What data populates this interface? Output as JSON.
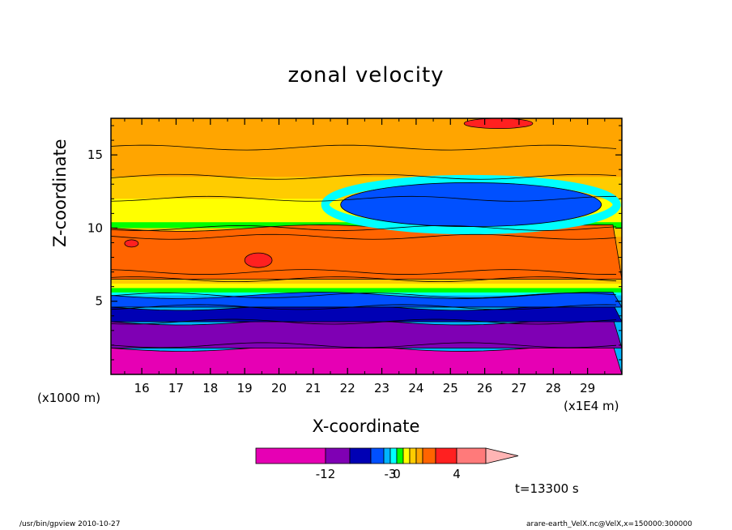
{
  "chart_data": {
    "type": "heatmap",
    "title": "zonal velocity",
    "xlabel": "X-coordinate",
    "ylabel": "Z-coordinate",
    "x_unit_label": "(x1E4 m)",
    "y_unit_label": "(x1000 m)",
    "x_ticks": [
      "16",
      "17",
      "18",
      "19",
      "20",
      "21",
      "22",
      "23",
      "24",
      "25",
      "26",
      "27",
      "28",
      "29"
    ],
    "y_ticks": [
      "5",
      "10",
      "15"
    ],
    "xlim": [
      15.1,
      30.0
    ],
    "ylim": [
      0,
      17.5
    ],
    "time_label": "t=13300 s",
    "colorbar": {
      "colors": [
        "#e600b4",
        "#7f00b4",
        "#0000b4",
        "#0050ff",
        "#00b4ff",
        "#00ffff",
        "#00ff00",
        "#ffff00",
        "#ffcc00",
        "#ffa500",
        "#ff6400",
        "#ff2020",
        "#ff7a7a",
        "#ffb4b4"
      ],
      "tick_labels": [
        "-12",
        "-3",
        "0",
        "4"
      ]
    },
    "regions": [
      {
        "name": "bottom layer",
        "x": [
          15.1,
          30.0
        ],
        "z": [
          0,
          1.8
        ],
        "color": "#e600b4"
      },
      {
        "name": "purple layer",
        "x": [
          15.1,
          30.0
        ],
        "z": [
          1.8,
          3.6
        ],
        "color": "#7f00b4"
      },
      {
        "name": "dark blue band",
        "x": [
          15.1,
          30.0
        ],
        "z": [
          3.6,
          4.6
        ],
        "color": "#0000b4"
      },
      {
        "name": "blue band",
        "x": [
          15.1,
          30.0
        ],
        "z": [
          4.6,
          5.4
        ],
        "color": "#0050ff"
      },
      {
        "name": "orange middle layer",
        "x": [
          15.1,
          30.0
        ],
        "z": [
          6.5,
          10.0
        ],
        "color": "#ff6400"
      },
      {
        "name": "red core (left)",
        "x": [
          15.5,
          15.9
        ],
        "z": [
          8.7,
          9.2
        ],
        "color": "#ff2020"
      },
      {
        "name": "red core (center)",
        "x": [
          19.0,
          19.8
        ],
        "z": [
          7.3,
          8.3
        ],
        "color": "#ff2020"
      },
      {
        "name": "blue core (upper)",
        "x": [
          21.8,
          29.4
        ],
        "z": [
          10.1,
          13.1
        ],
        "color": "#0050ff"
      },
      {
        "name": "red core (top)",
        "x": [
          25.4,
          27.4
        ],
        "z": [
          16.8,
          17.5
        ],
        "color": "#ff2020"
      }
    ]
  },
  "footer": {
    "left": "/usr/bin/gpview   2010-10-27",
    "right": "arare-earth_VelX.nc@VelX,x=150000:300000"
  }
}
